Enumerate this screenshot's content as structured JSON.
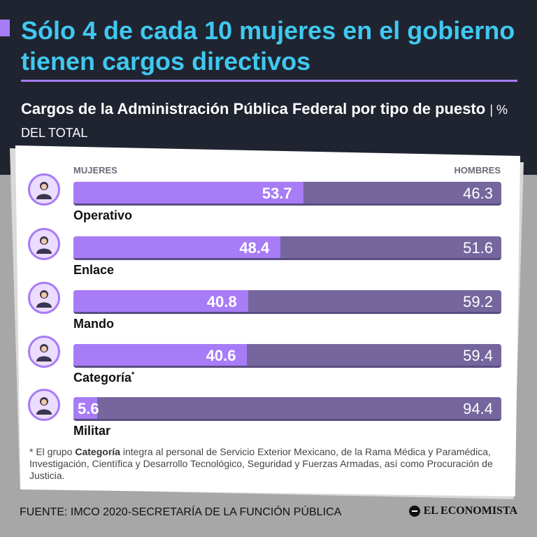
{
  "headline": "Sólo 4 de cada 10 mujeres en el gobierno tienen cargos directivos",
  "subtitle": "Cargos de la Administración Pública Federal por tipo de puesto",
  "subtitle_unit": "| % DEL TOTAL",
  "colors": {
    "women": "#a77cf6",
    "men": "#75669e",
    "headline": "#40c8f0",
    "background": "#1f2430"
  },
  "chart_data": {
    "type": "bar",
    "stacked": true,
    "orientation": "horizontal",
    "categories": [
      "Operativo",
      "Enlace",
      "Mando",
      "Categoría",
      "Militar"
    ],
    "series": [
      {
        "name": "MUJERES",
        "values": [
          53.7,
          48.4,
          40.8,
          40.6,
          5.6
        ]
      },
      {
        "name": "HOMBRES",
        "values": [
          46.3,
          51.6,
          59.2,
          59.4,
          94.4
        ]
      }
    ],
    "value_labels_women": [
      "53.7",
      "48.4",
      "40.8",
      "40.6",
      "5.6"
    ],
    "value_labels_men": [
      "46.3",
      "51.6",
      "59.2",
      "59.4",
      "94.4"
    ],
    "category_note_mark": "*",
    "icons": [
      "office-worker-icon",
      "woman-phone-icon",
      "group-women-icon",
      "doctor-woman-icon",
      "soldier-woman-icon"
    ],
    "xlim": [
      0,
      100
    ]
  },
  "footnote": {
    "prefix": "* El grupo ",
    "bold": "Categoría",
    "text": " integra al personal de Servicio Exterior Mexicano, de la Rama Médica y Paramédica, Investigación, Científica y Desarrollo Tecnológico, Seguridad y Fuerzas Armadas, así como Procuración de Justicia."
  },
  "source": "FUENTE: IMCO 2020-SECRETARÍA DE LA FUNCIÓN PÚBLICA",
  "brand": "EL ECONOMISTA"
}
